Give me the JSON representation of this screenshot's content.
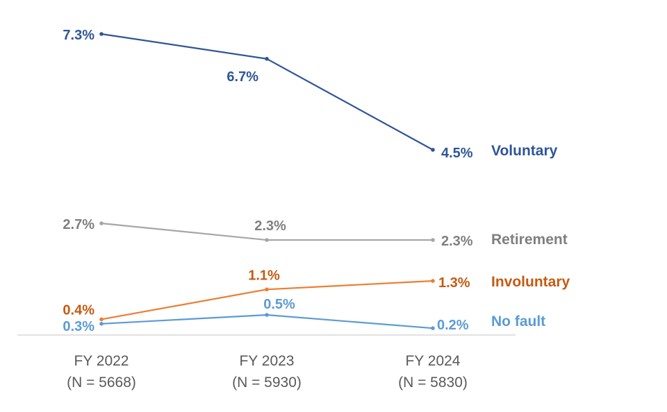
{
  "chart_data": {
    "type": "line",
    "title": "",
    "xlabel": "",
    "ylabel": "",
    "ylim": [
      0,
      8
    ],
    "grid": false,
    "legend": "none (series names labeled at line ends, right)",
    "categories": [
      {
        "year": "FY 2022",
        "n": "(N = 5668)"
      },
      {
        "year": "FY 2023",
        "n": "(N = 5930)"
      },
      {
        "year": "FY 2024",
        "n": "(N = 5830)"
      }
    ],
    "series": [
      {
        "name": "Voluntary",
        "color": "#2f5597",
        "values": [
          7.3,
          6.7,
          4.5
        ],
        "labels": [
          "7.3%",
          "6.7%",
          "4.5%"
        ]
      },
      {
        "name": "Retirement",
        "color": "#7f7f7f",
        "line_color": "#a6a6a6",
        "values": [
          2.7,
          2.3,
          2.3
        ],
        "labels": [
          "2.7%",
          "2.3%",
          "2.3%"
        ]
      },
      {
        "name": "Involuntary",
        "color": "#c55a11",
        "line_color": "#ed7d31",
        "values": [
          0.4,
          1.1,
          1.3
        ],
        "labels": [
          "0.4%",
          "1.1%",
          "1.3%"
        ]
      },
      {
        "name": "No fault",
        "color": "#5b9bd5",
        "values": [
          0.3,
          0.5,
          0.2
        ],
        "labels": [
          "0.3%",
          "0.5%",
          "0.2%"
        ]
      }
    ]
  }
}
